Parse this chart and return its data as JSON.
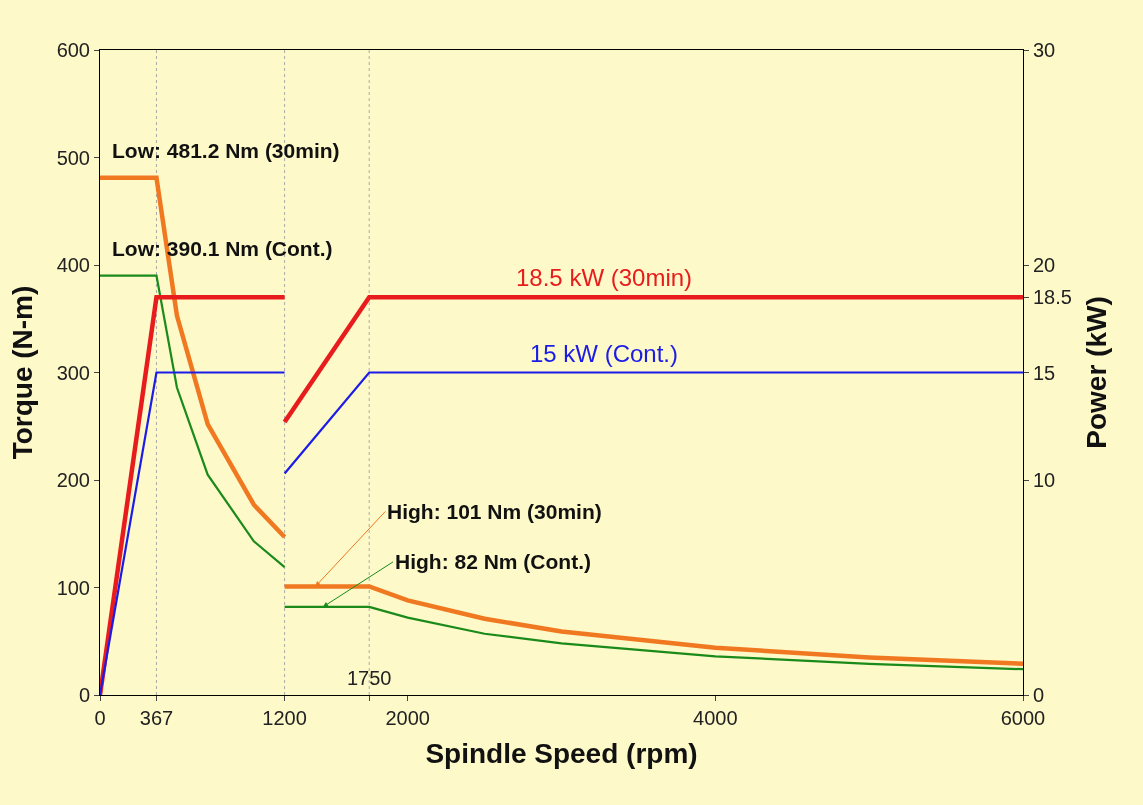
{
  "chart_data": {
    "type": "line",
    "xlabel": "Spindle Speed (rpm)",
    "ylabel": "Torque (N-m)",
    "y2label": "Power (kW)",
    "xlim": [
      0,
      6000
    ],
    "xticks": [
      0,
      367,
      1200,
      {
        "value": 1750,
        "label": null
      },
      2000,
      4000,
      6000
    ],
    "ylim": [
      0,
      600
    ],
    "yticks": [
      0,
      100,
      200,
      300,
      400,
      500,
      600
    ],
    "y2lim": [
      0,
      30
    ],
    "y2ticks": [
      0,
      10,
      15,
      18.5,
      20,
      30
    ],
    "grid": false,
    "legend": false,
    "marker": "none",
    "line_style": "solid",
    "series": [
      {
        "color": "#f07820",
        "x": [
          0,
          367,
          500,
          700,
          1000,
          1200,
          null,
          1200,
          1750,
          2000,
          2500,
          3000,
          4000,
          5000,
          6000
        ],
        "values": [
          481.2,
          481.2,
          353,
          252,
          177,
          147,
          null,
          101,
          101,
          88,
          71,
          59,
          44,
          35,
          29
        ]
      },
      {
        "color": "#1a8a1a",
        "x": [
          0,
          367,
          500,
          700,
          1000,
          1200,
          null,
          1200,
          1750,
          2000,
          2500,
          3000,
          4000,
          5000,
          6000
        ],
        "values": [
          390.1,
          390.1,
          286,
          205,
          143,
          119,
          null,
          82,
          82,
          72,
          57,
          48,
          36,
          29,
          24
        ]
      },
      {
        "name": "18.5 kW (30min)",
        "color": "#e81c1c",
        "axis": "y2",
        "x": [
          0,
          367,
          1200,
          null,
          1200,
          1750,
          6000
        ],
        "values": [
          0,
          18.5,
          18.5,
          null,
          12.7,
          18.5,
          18.5
        ]
      },
      {
        "name": "15 kW (Cont.)",
        "color": "#1c1ce8",
        "axis": "y2",
        "x": [
          0,
          367,
          1200,
          null,
          1200,
          1750,
          6000
        ],
        "values": [
          0,
          15,
          15,
          null,
          10.3,
          15,
          15
        ]
      }
    ],
    "ref_lines": [
      {
        "axis": "x",
        "value": 367,
        "line_style": "dotted"
      },
      {
        "axis": "x",
        "value": 1200,
        "line_style": "dotted"
      },
      {
        "axis": "x",
        "value": 1750,
        "line_style": "dotted"
      }
    ],
    "annotations": [
      {
        "text": "Low: 481.2 Nm (30min)",
        "x": 0,
        "y": 481.2
      },
      {
        "text": "Low: 390.1 Nm (Cont.)",
        "x": 0,
        "y": 390.1
      },
      {
        "text": "High: 101 Nm (30min)",
        "x": 1400,
        "y": 101
      },
      {
        "text": "High: 82 Nm (Cont.)",
        "x": 1450,
        "y": 82
      },
      {
        "text": "1750",
        "x": 1750,
        "y": 0
      }
    ]
  }
}
